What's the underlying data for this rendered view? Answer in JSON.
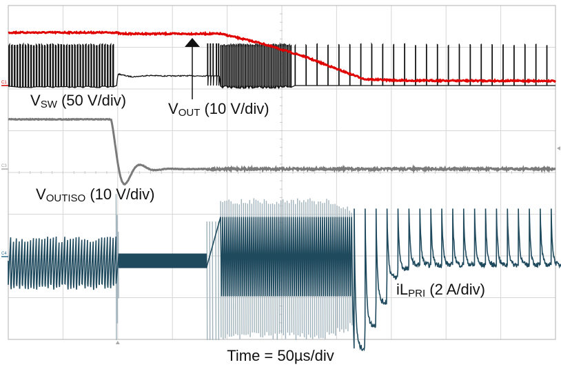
{
  "chart_data": {
    "type": "line",
    "title": "",
    "xlabel": "Time = 50µs/div",
    "time_per_div_us": 50,
    "divisions_x": 10,
    "divisions_y": 8,
    "xlim_us": [
      0,
      500
    ],
    "grid": true,
    "trigger_time_us": 100,
    "series": [
      {
        "id": "vsw",
        "channel": "C1",
        "main": "V",
        "sub": "SW",
        "scale_text": "(50 V/div)",
        "volts_per_div": 50,
        "color": "#111111",
        "high_V": 50,
        "low_V": 0,
        "plateau_V": 11.6,
        "segments": [
          {
            "from_us": 0,
            "to_us": 98,
            "mode": "switching",
            "period_us": 2.5
          },
          {
            "from_us": 100,
            "to_us": 181,
            "mode": "idle-plateau"
          },
          {
            "from_us": 181,
            "to_us": 194,
            "mode": "sparse-switching"
          },
          {
            "from_us": 194,
            "to_us": 258,
            "mode": "burst-switching",
            "period_us": 1.6
          },
          {
            "from_us": 258,
            "to_us": 500,
            "mode": "switching",
            "period_us": 10
          }
        ]
      },
      {
        "id": "vout",
        "channel": "C1",
        "main": "V",
        "sub": "OUT",
        "scale_text": "(10 V/div)",
        "volts_per_div": 10,
        "color": "#e00000",
        "points": [
          [
            0,
            12.7
          ],
          [
            98,
            12.7
          ],
          [
            103,
            12.4
          ],
          [
            194,
            12.4
          ],
          [
            230,
            10.2
          ],
          [
            270,
            7.0
          ],
          [
            305,
            3.5
          ],
          [
            326,
            1.5
          ],
          [
            360,
            1.2
          ],
          [
            500,
            1.1
          ]
        ]
      },
      {
        "id": "voutiso",
        "channel": "C3",
        "main": "V",
        "sub": "OUTISO",
        "scale_text": "(10 V/div)",
        "volts_per_div": 10,
        "color": "#7a7a7a",
        "initial_V": 11.9,
        "drop_start_us": 94,
        "min_V": -3.3,
        "min_at_us": 108,
        "final_V": 0
      },
      {
        "id": "ilpri",
        "channel": "C4",
        "main": "iL",
        "sub": "PRI",
        "scale_text": "(2 A/div)",
        "amps_per_div": 2,
        "color": "#1f4a5e",
        "spike_color": "#9fb1ba",
        "pre_trigger_range_A": [
          -1.3,
          0.66
        ],
        "idle_A": -0.2,
        "burst_range_A": [
          -4.0,
          2.8
        ],
        "burst_us": [
          181,
          314
        ],
        "pulse_peak_A": 2.3,
        "pulse_period_us": 10,
        "pulse_troughs_A": [
          -4.4,
          -3.3,
          -2.2,
          -1.0,
          -0.6,
          -0.4
        ]
      }
    ]
  },
  "annotations": {
    "vout_arrow": "arrow-up"
  },
  "colors": {
    "grid": "#d6d6d6",
    "frame": "#bdbdbd"
  }
}
